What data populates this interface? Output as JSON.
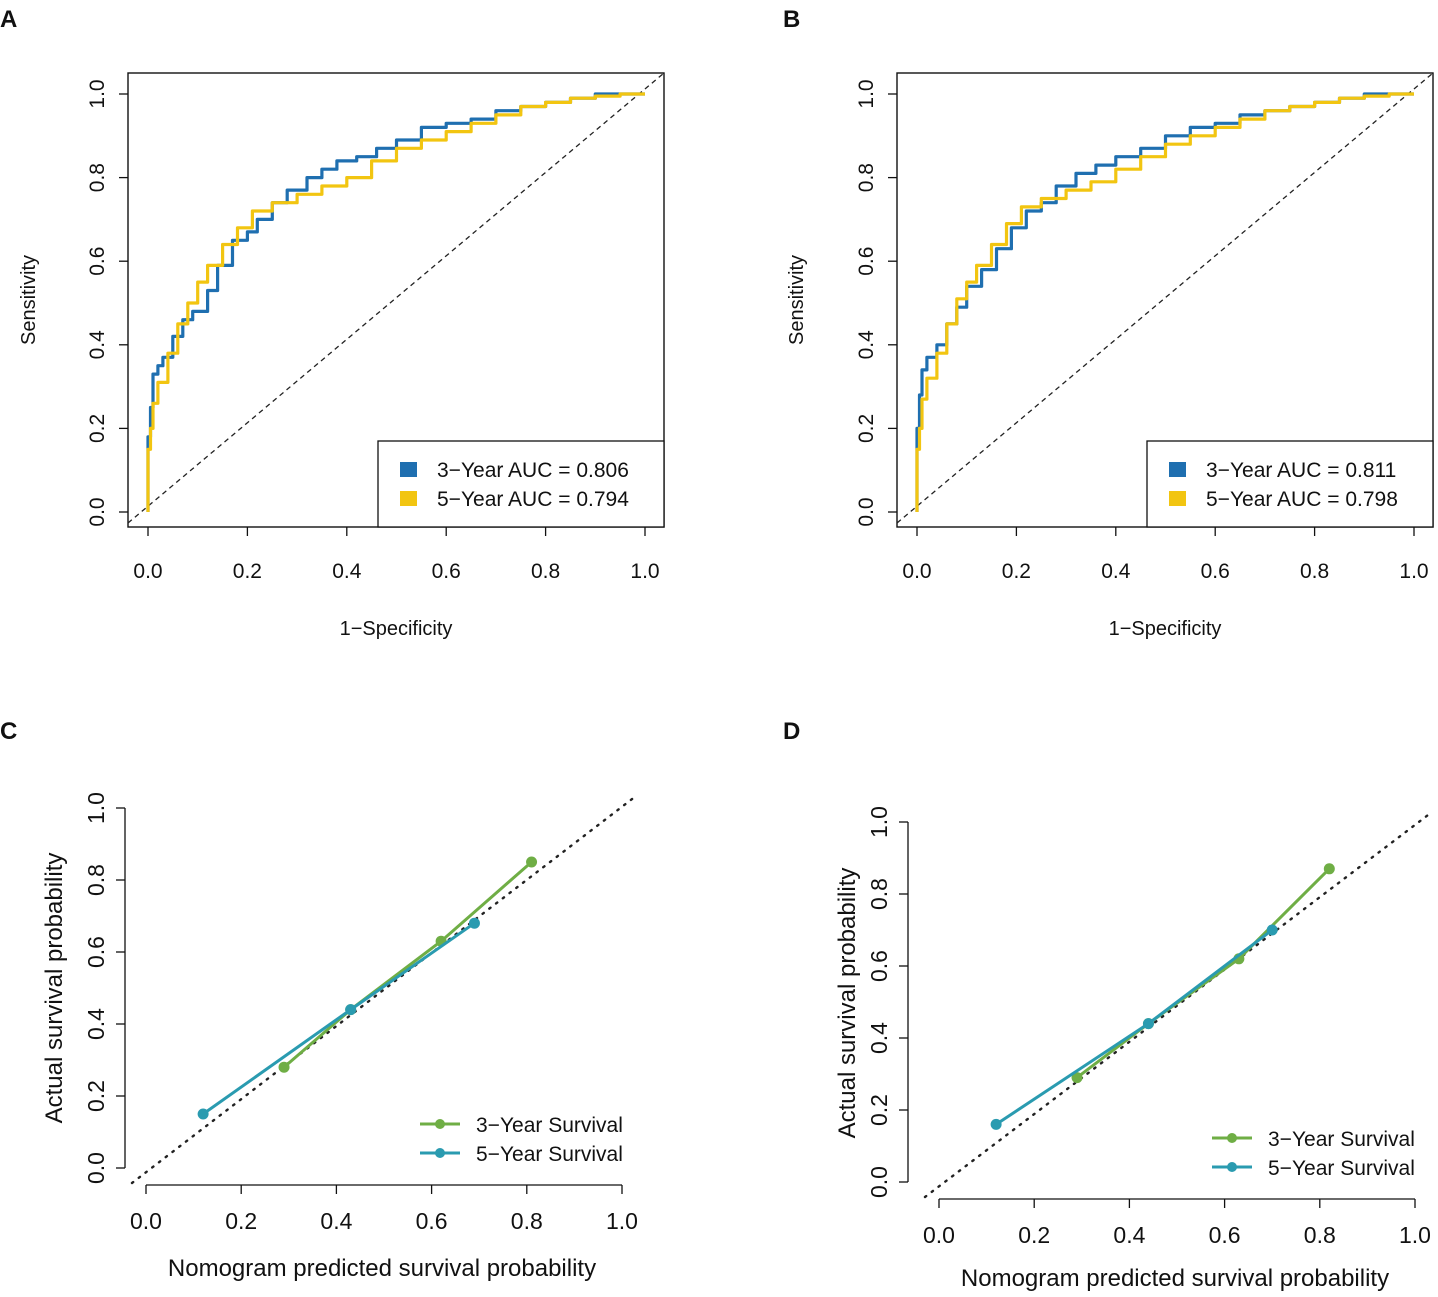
{
  "colors": {
    "roc_3yr": "#1f6fb0",
    "roc_5yr": "#f2c511",
    "cal_3yr": "#6fae45",
    "cal_5yr": "#2a9bb0",
    "reference": "#222222"
  },
  "chart_data": [
    {
      "panel": "A",
      "type": "line",
      "subtype": "roc",
      "xlabel": "1−Specificity",
      "ylabel": "Sensitivity",
      "xlim": [
        0,
        1
      ],
      "ylim": [
        0,
        1
      ],
      "xticks": [
        "0.0",
        "0.2",
        "0.4",
        "0.6",
        "0.8",
        "1.0"
      ],
      "yticks": [
        "0.0",
        "0.2",
        "0.4",
        "0.6",
        "0.8",
        "1.0"
      ],
      "reference_line": "dashed diagonal",
      "legend_position": "bottom-right",
      "series": [
        {
          "name": "3−Year AUC = 0.806",
          "color": "#1f6fb0",
          "points": [
            [
              0,
              0
            ],
            [
              0,
              0.08
            ],
            [
              0.005,
              0.18
            ],
            [
              0.01,
              0.25
            ],
            [
              0.02,
              0.33
            ],
            [
              0.03,
              0.35
            ],
            [
              0.05,
              0.37
            ],
            [
              0.07,
              0.42
            ],
            [
              0.09,
              0.46
            ],
            [
              0.12,
              0.48
            ],
            [
              0.14,
              0.53
            ],
            [
              0.17,
              0.59
            ],
            [
              0.2,
              0.65
            ],
            [
              0.22,
              0.67
            ],
            [
              0.25,
              0.7
            ],
            [
              0.28,
              0.74
            ],
            [
              0.32,
              0.77
            ],
            [
              0.35,
              0.8
            ],
            [
              0.38,
              0.82
            ],
            [
              0.42,
              0.84
            ],
            [
              0.46,
              0.85
            ],
            [
              0.5,
              0.87
            ],
            [
              0.55,
              0.89
            ],
            [
              0.6,
              0.92
            ],
            [
              0.65,
              0.93
            ],
            [
              0.7,
              0.94
            ],
            [
              0.75,
              0.96
            ],
            [
              0.8,
              0.97
            ],
            [
              0.85,
              0.98
            ],
            [
              0.9,
              0.99
            ],
            [
              0.95,
              1.0
            ],
            [
              1,
              1
            ]
          ]
        },
        {
          "name": "5−Year AUC = 0.794",
          "color": "#f2c511",
          "points": [
            [
              0,
              0
            ],
            [
              0,
              0.06
            ],
            [
              0.005,
              0.15
            ],
            [
              0.01,
              0.2
            ],
            [
              0.02,
              0.26
            ],
            [
              0.04,
              0.31
            ],
            [
              0.06,
              0.38
            ],
            [
              0.08,
              0.45
            ],
            [
              0.1,
              0.5
            ],
            [
              0.12,
              0.55
            ],
            [
              0.15,
              0.59
            ],
            [
              0.18,
              0.64
            ],
            [
              0.21,
              0.68
            ],
            [
              0.25,
              0.72
            ],
            [
              0.3,
              0.74
            ],
            [
              0.35,
              0.76
            ],
            [
              0.4,
              0.78
            ],
            [
              0.45,
              0.8
            ],
            [
              0.5,
              0.84
            ],
            [
              0.55,
              0.87
            ],
            [
              0.6,
              0.89
            ],
            [
              0.65,
              0.91
            ],
            [
              0.7,
              0.93
            ],
            [
              0.75,
              0.95
            ],
            [
              0.8,
              0.97
            ],
            [
              0.85,
              0.98
            ],
            [
              0.9,
              0.99
            ],
            [
              0.95,
              0.995
            ],
            [
              1,
              1
            ]
          ]
        }
      ]
    },
    {
      "panel": "B",
      "type": "line",
      "subtype": "roc",
      "xlabel": "1−Specificity",
      "ylabel": "Sensitivity",
      "xlim": [
        0,
        1
      ],
      "ylim": [
        0,
        1
      ],
      "xticks": [
        "0.0",
        "0.2",
        "0.4",
        "0.6",
        "0.8",
        "1.0"
      ],
      "yticks": [
        "0.0",
        "0.2",
        "0.4",
        "0.6",
        "0.8",
        "1.0"
      ],
      "reference_line": "dashed diagonal",
      "legend_position": "bottom-right",
      "series": [
        {
          "name": "3−Year AUC = 0.811",
          "color": "#1f6fb0",
          "points": [
            [
              0,
              0
            ],
            [
              0,
              0.1
            ],
            [
              0.005,
              0.2
            ],
            [
              0.01,
              0.28
            ],
            [
              0.02,
              0.34
            ],
            [
              0.04,
              0.37
            ],
            [
              0.06,
              0.4
            ],
            [
              0.08,
              0.45
            ],
            [
              0.1,
              0.49
            ],
            [
              0.13,
              0.54
            ],
            [
              0.16,
              0.58
            ],
            [
              0.19,
              0.63
            ],
            [
              0.22,
              0.68
            ],
            [
              0.25,
              0.72
            ],
            [
              0.28,
              0.74
            ],
            [
              0.32,
              0.78
            ],
            [
              0.36,
              0.81
            ],
            [
              0.4,
              0.83
            ],
            [
              0.45,
              0.85
            ],
            [
              0.5,
              0.87
            ],
            [
              0.55,
              0.9
            ],
            [
              0.6,
              0.92
            ],
            [
              0.65,
              0.93
            ],
            [
              0.7,
              0.95
            ],
            [
              0.75,
              0.96
            ],
            [
              0.8,
              0.97
            ],
            [
              0.85,
              0.98
            ],
            [
              0.9,
              0.99
            ],
            [
              0.95,
              1.0
            ],
            [
              1,
              1
            ]
          ]
        },
        {
          "name": "5−Year AUC = 0.798",
          "color": "#f2c511",
          "points": [
            [
              0,
              0
            ],
            [
              0,
              0.07
            ],
            [
              0.005,
              0.15
            ],
            [
              0.01,
              0.2
            ],
            [
              0.02,
              0.27
            ],
            [
              0.04,
              0.32
            ],
            [
              0.06,
              0.38
            ],
            [
              0.08,
              0.45
            ],
            [
              0.1,
              0.51
            ],
            [
              0.12,
              0.55
            ],
            [
              0.15,
              0.59
            ],
            [
              0.18,
              0.64
            ],
            [
              0.21,
              0.69
            ],
            [
              0.25,
              0.73
            ],
            [
              0.3,
              0.75
            ],
            [
              0.35,
              0.77
            ],
            [
              0.4,
              0.79
            ],
            [
              0.45,
              0.82
            ],
            [
              0.5,
              0.85
            ],
            [
              0.55,
              0.88
            ],
            [
              0.6,
              0.9
            ],
            [
              0.65,
              0.92
            ],
            [
              0.7,
              0.94
            ],
            [
              0.75,
              0.96
            ],
            [
              0.8,
              0.97
            ],
            [
              0.85,
              0.98
            ],
            [
              0.9,
              0.99
            ],
            [
              0.95,
              0.995
            ],
            [
              1,
              1
            ]
          ]
        }
      ]
    },
    {
      "panel": "C",
      "type": "line",
      "subtype": "calibration",
      "xlabel": "Nomogram predicted survival probability",
      "ylabel": "Actual survival probability",
      "xlim": [
        0,
        1
      ],
      "ylim": [
        0,
        1
      ],
      "xticks": [
        "0.0",
        "0.2",
        "0.4",
        "0.6",
        "0.8",
        "1.0"
      ],
      "yticks": [
        "0.0",
        "0.2",
        "0.4",
        "0.6",
        "0.8",
        "1.0"
      ],
      "reference_line": "dotted diagonal",
      "legend_position": "bottom-right",
      "series": [
        {
          "name": "3−Year Survival",
          "color": "#6fae45",
          "points": [
            [
              0.29,
              0.28
            ],
            [
              0.43,
              0.44
            ],
            [
              0.62,
              0.63
            ],
            [
              0.81,
              0.85
            ]
          ]
        },
        {
          "name": "5−Year Survival",
          "color": "#2a9bb0",
          "points": [
            [
              0.12,
              0.15
            ],
            [
              0.43,
              0.44
            ],
            [
              0.69,
              0.68
            ]
          ]
        }
      ]
    },
    {
      "panel": "D",
      "type": "line",
      "subtype": "calibration",
      "xlabel": "Nomogram predicted survival probability",
      "ylabel": "Actual survival probability",
      "xlim": [
        0,
        1
      ],
      "ylim": [
        0,
        1
      ],
      "xticks": [
        "0.0",
        "0.2",
        "0.4",
        "0.6",
        "0.8",
        "1.0"
      ],
      "yticks": [
        "0.0",
        "0.2",
        "0.4",
        "0.6",
        "0.8",
        "1.0"
      ],
      "reference_line": "dotted diagonal",
      "legend_position": "bottom-right",
      "series": [
        {
          "name": "3−Year Survival",
          "color": "#6fae45",
          "points": [
            [
              0.29,
              0.29
            ],
            [
              0.44,
              0.44
            ],
            [
              0.63,
              0.62
            ],
            [
              0.82,
              0.87
            ]
          ]
        },
        {
          "name": "5−Year Survival",
          "color": "#2a9bb0",
          "points": [
            [
              0.12,
              0.16
            ],
            [
              0.44,
              0.44
            ],
            [
              0.7,
              0.7
            ]
          ]
        }
      ]
    }
  ]
}
